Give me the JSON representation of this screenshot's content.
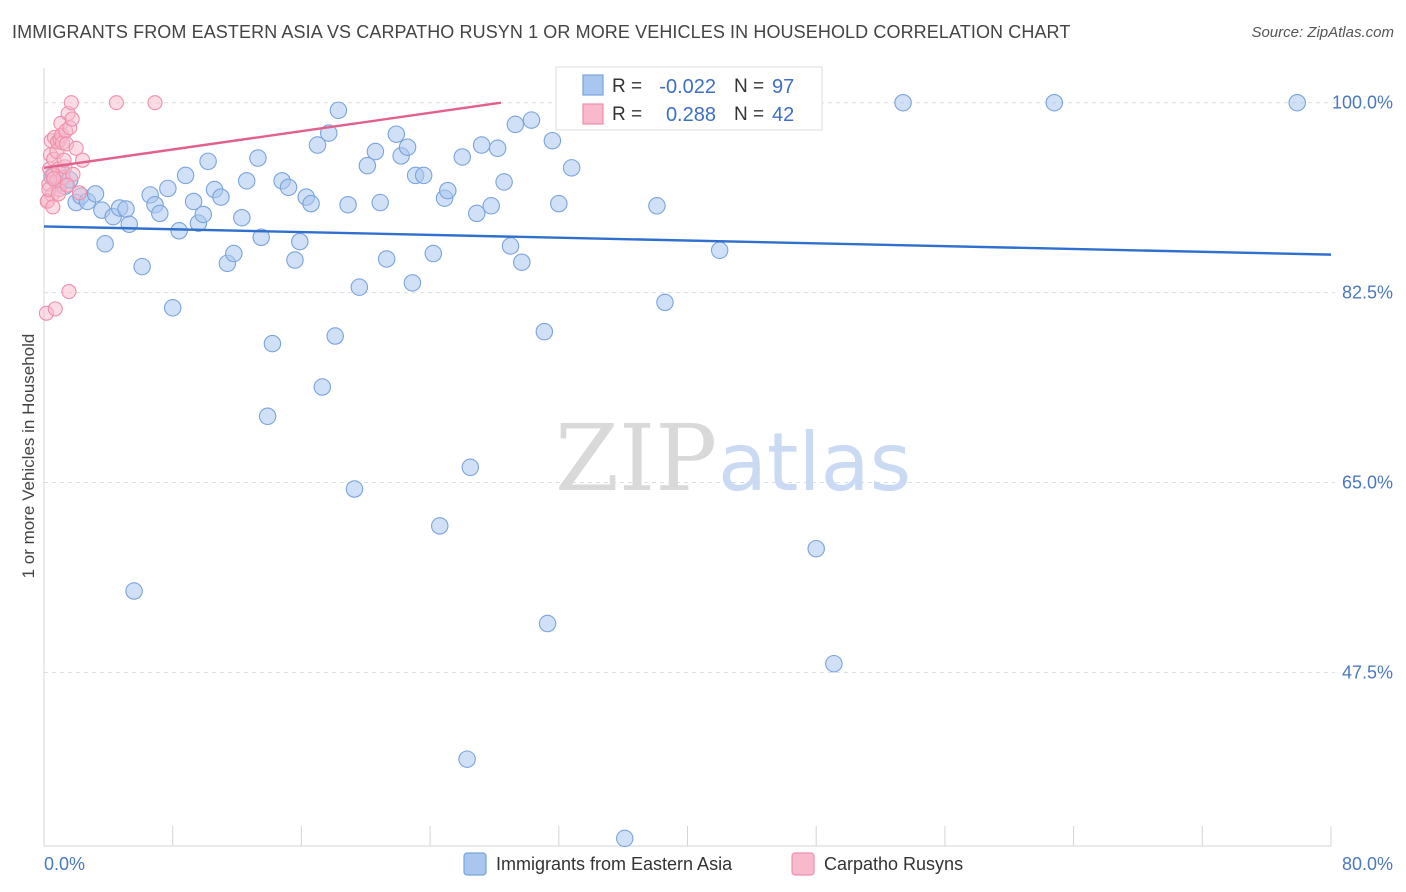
{
  "header": {
    "title": "IMMIGRANTS FROM EASTERN ASIA VS CARPATHO RUSYN 1 OR MORE VEHICLES IN HOUSEHOLD CORRELATION CHART",
    "source": "Source: ZipAtlas.com"
  },
  "watermark": {
    "zip": "ZIP",
    "atlas": "atlas"
  },
  "colors": {
    "blue_fill": "#a9c6ef",
    "blue_stroke": "#7aa3dc",
    "blue_line": "#2f6fcd",
    "pink_fill": "#f7b9cb",
    "pink_stroke": "#ef8fab",
    "pink_line": "#e2608b",
    "axis_text": "#4a78c2",
    "grid": "#d8dde6"
  },
  "stats": {
    "blue": {
      "r_label": "R =",
      "r_value": "-0.022",
      "n_label": "N =",
      "n_value": "97"
    },
    "pink": {
      "r_label": "R =",
      "r_value": "0.288",
      "n_label": "N =",
      "n_value": "42"
    }
  },
  "chart_data": {
    "type": "scatter",
    "title": "IMMIGRANTS FROM EASTERN ASIA VS CARPATHO RUSYN 1 OR MORE VEHICLES IN HOUSEHOLD CORRELATION CHART",
    "xlabel": "",
    "ylabel": "1 or more Vehicles in Household",
    "xlim": [
      0,
      80
    ],
    "ylim": [
      31.5,
      103.2
    ],
    "x_tick_labels": [
      "0.0%",
      "80.0%"
    ],
    "y_ticks": [
      100,
      82.5,
      65,
      47.5
    ],
    "y_tick_labels": [
      "100.0%",
      "82.5%",
      "65.0%",
      "47.5%"
    ],
    "grid": true,
    "legend_position": "bottom-center",
    "series": [
      {
        "name": "Immigrants from Eastern Asia",
        "color": "#a9c6ef",
        "trend": {
          "x": [
            0,
            80
          ],
          "y": [
            88.6,
            86.0
          ]
        },
        "points": [
          [
            0.5,
            93.2
          ],
          [
            0.9,
            92.5
          ],
          [
            1.1,
            93.6
          ],
          [
            1.3,
            92.3
          ],
          [
            1.6,
            92.9
          ],
          [
            2.0,
            90.8
          ],
          [
            2.3,
            91.4
          ],
          [
            2.7,
            90.9
          ],
          [
            3.2,
            91.6
          ],
          [
            3.6,
            90.1
          ],
          [
            3.8,
            87.0
          ],
          [
            4.3,
            89.5
          ],
          [
            4.7,
            90.3
          ],
          [
            5.1,
            90.2
          ],
          [
            5.3,
            88.8
          ],
          [
            6.1,
            84.9
          ],
          [
            6.6,
            91.5
          ],
          [
            6.9,
            90.6
          ],
          [
            7.2,
            89.8
          ],
          [
            7.7,
            92.1
          ],
          [
            8.0,
            81.1
          ],
          [
            8.4,
            88.2
          ],
          [
            8.8,
            93.3
          ],
          [
            9.3,
            90.9
          ],
          [
            9.6,
            88.9
          ],
          [
            9.9,
            89.7
          ],
          [
            10.2,
            94.6
          ],
          [
            10.6,
            92.0
          ],
          [
            11.0,
            91.3
          ],
          [
            11.4,
            85.2
          ],
          [
            11.8,
            86.1
          ],
          [
            12.3,
            89.4
          ],
          [
            12.6,
            92.8
          ],
          [
            13.3,
            94.9
          ],
          [
            13.5,
            87.6
          ],
          [
            13.9,
            71.1
          ],
          [
            14.2,
            77.8
          ],
          [
            14.8,
            92.8
          ],
          [
            15.2,
            92.2
          ],
          [
            15.6,
            85.5
          ],
          [
            15.9,
            87.2
          ],
          [
            16.3,
            91.3
          ],
          [
            16.6,
            90.7
          ],
          [
            17.0,
            96.1
          ],
          [
            17.3,
            73.8
          ],
          [
            17.7,
            97.2
          ],
          [
            18.1,
            78.5
          ],
          [
            18.3,
            99.3
          ],
          [
            18.9,
            90.6
          ],
          [
            19.3,
            64.4
          ],
          [
            19.6,
            83.0
          ],
          [
            20.1,
            94.2
          ],
          [
            20.6,
            95.5
          ],
          [
            20.9,
            90.8
          ],
          [
            21.3,
            85.6
          ],
          [
            21.9,
            97.1
          ],
          [
            22.2,
            95.1
          ],
          [
            22.6,
            95.9
          ],
          [
            22.9,
            83.4
          ],
          [
            23.1,
            93.3
          ],
          [
            23.6,
            93.3
          ],
          [
            24.2,
            86.1
          ],
          [
            24.6,
            61.0
          ],
          [
            24.9,
            91.2
          ],
          [
            25.1,
            91.9
          ],
          [
            26.0,
            95.0
          ],
          [
            26.5,
            66.4
          ],
          [
            26.9,
            89.8
          ],
          [
            27.2,
            96.1
          ],
          [
            27.8,
            90.5
          ],
          [
            28.2,
            95.8
          ],
          [
            28.6,
            92.7
          ],
          [
            29.0,
            86.8
          ],
          [
            29.3,
            98.0
          ],
          [
            29.7,
            85.3
          ],
          [
            30.3,
            98.4
          ],
          [
            31.1,
            78.9
          ],
          [
            31.3,
            52.0
          ],
          [
            31.6,
            96.5
          ],
          [
            32.0,
            90.7
          ],
          [
            32.8,
            94.0
          ],
          [
            33.3,
            100.0
          ],
          [
            35.4,
            100.0
          ],
          [
            36.1,
            32.2
          ],
          [
            37.3,
            100.0
          ],
          [
            38.6,
            81.6
          ],
          [
            38.1,
            90.5
          ],
          [
            39.2,
            100.0
          ],
          [
            42.0,
            86.4
          ],
          [
            43.8,
            100.0
          ],
          [
            48.0,
            58.9
          ],
          [
            49.1,
            48.3
          ],
          [
            53.4,
            100.0
          ],
          [
            62.8,
            100.0
          ],
          [
            77.9,
            100.0
          ],
          [
            26.3,
            39.5
          ],
          [
            5.6,
            55.0
          ]
        ]
      },
      {
        "name": "Carpatho Rusyns",
        "color": "#f7b9cb",
        "trend": {
          "x": [
            0,
            28.4
          ],
          "y": [
            94.0,
            100.0
          ]
        },
        "points": [
          [
            0.15,
            80.6
          ],
          [
            0.25,
            91.0
          ],
          [
            0.3,
            92.5
          ],
          [
            0.35,
            93.9
          ],
          [
            0.4,
            95.2
          ],
          [
            0.45,
            96.5
          ],
          [
            0.5,
            91.5
          ],
          [
            0.55,
            93.3
          ],
          [
            0.6,
            94.8
          ],
          [
            0.65,
            96.8
          ],
          [
            0.7,
            81.0
          ],
          [
            0.75,
            92.7
          ],
          [
            0.8,
            95.5
          ],
          [
            0.85,
            96.4
          ],
          [
            0.9,
            93.9
          ],
          [
            0.95,
            92.0
          ],
          [
            1.0,
            96.6
          ],
          [
            1.05,
            98.1
          ],
          [
            1.1,
            97.0
          ],
          [
            1.15,
            96.3
          ],
          [
            1.2,
            93.1
          ],
          [
            1.3,
            94.1
          ],
          [
            1.35,
            97.4
          ],
          [
            1.4,
            96.2
          ],
          [
            1.5,
            99.0
          ],
          [
            1.55,
            82.6
          ],
          [
            1.6,
            97.7
          ],
          [
            1.7,
            100.0
          ],
          [
            1.75,
            98.5
          ],
          [
            1.8,
            93.4
          ],
          [
            2.0,
            95.8
          ],
          [
            2.2,
            91.7
          ],
          [
            2.4,
            94.7
          ],
          [
            0.2,
            90.9
          ],
          [
            0.3,
            92.0
          ],
          [
            0.6,
            93.0
          ],
          [
            1.25,
            94.7
          ],
          [
            4.5,
            100.0
          ],
          [
            6.9,
            100.0
          ],
          [
            0.9,
            91.6
          ],
          [
            1.45,
            92.4
          ],
          [
            0.55,
            90.4
          ]
        ]
      }
    ]
  },
  "legend": {
    "items": [
      {
        "label": "Immigrants from Eastern Asia",
        "color": "#a9c6ef"
      },
      {
        "label": "Carpatho Rusyns",
        "color": "#f7b9cb"
      }
    ]
  }
}
